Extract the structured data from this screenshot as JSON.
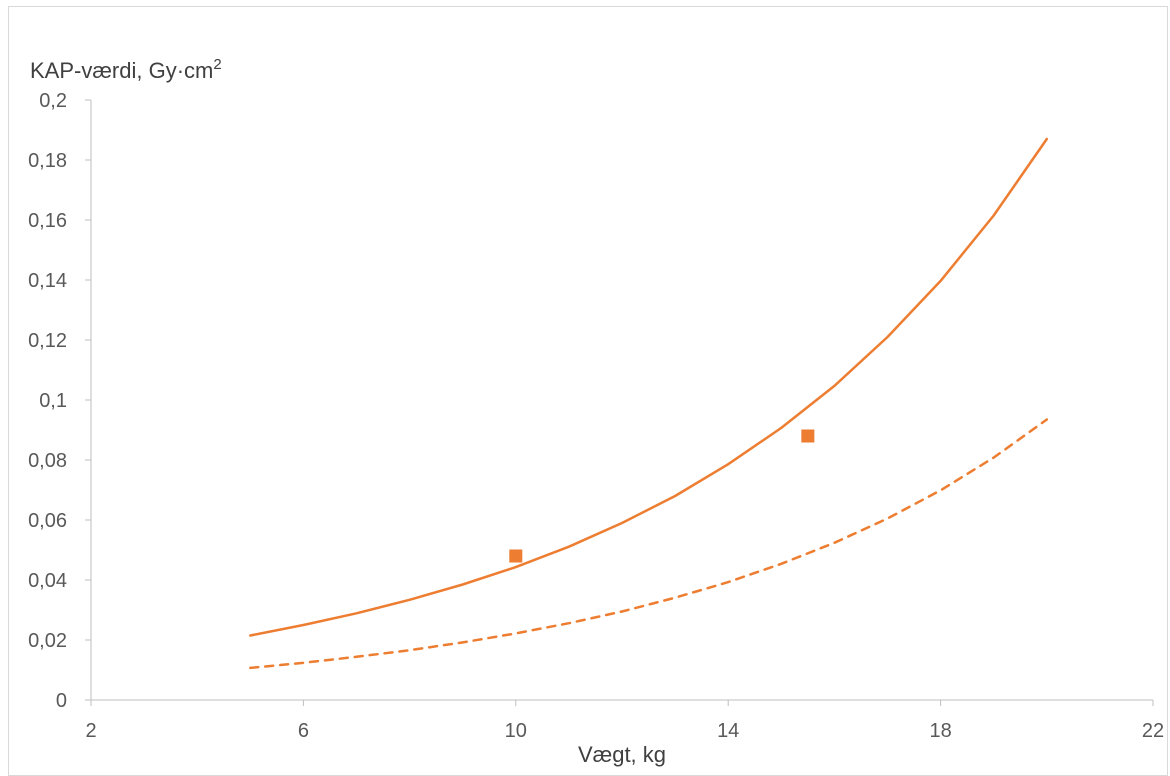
{
  "chart_data": {
    "type": "line",
    "title": "",
    "ylabel": "KAP-værdi, Gy·cm",
    "ylabel_sup": "2",
    "xlabel": "Vægt, kg",
    "xlim": [
      2,
      22
    ],
    "ylim": [
      0,
      0.2
    ],
    "x_ticks": [
      2,
      6,
      10,
      14,
      18,
      22
    ],
    "y_ticks": [
      0,
      0.02,
      0.04,
      0.06,
      0.08,
      0.1,
      0.12,
      0.14,
      0.16,
      0.18,
      0.2
    ],
    "x_tick_labels": [
      "2",
      "6",
      "10",
      "14",
      "18",
      "22"
    ],
    "y_tick_labels": [
      "0",
      "0,02",
      "0,04",
      "0,06",
      "0,08",
      "0,1",
      "0,12",
      "0,14",
      "0,16",
      "0,18",
      "0,2"
    ],
    "grid": false,
    "legend": "none",
    "color": "#ed7d31",
    "series": [
      {
        "style": "solid",
        "x": [
          5,
          6,
          7,
          8,
          9,
          10,
          11,
          12,
          13,
          14,
          15,
          16,
          17,
          18,
          19,
          20
        ],
        "y": [
          0.0215,
          0.025,
          0.0289,
          0.0334,
          0.0385,
          0.0443,
          0.0511,
          0.059,
          0.068,
          0.0786,
          0.0907,
          0.1047,
          0.121,
          0.1397,
          0.1615,
          0.187
        ]
      },
      {
        "style": "dashed",
        "x": [
          5,
          6,
          7,
          8,
          9,
          10,
          11,
          12,
          13,
          14,
          15,
          16,
          17,
          18,
          19,
          20
        ],
        "y": [
          0.0107,
          0.0124,
          0.0144,
          0.0166,
          0.0192,
          0.0222,
          0.0256,
          0.0295,
          0.0341,
          0.0393,
          0.0454,
          0.0524,
          0.0605,
          0.0699,
          0.0808,
          0.0935
        ]
      },
      {
        "style": "markers",
        "marker": "square",
        "x": [
          10,
          15.5
        ],
        "y": [
          0.048,
          0.088
        ]
      }
    ]
  }
}
